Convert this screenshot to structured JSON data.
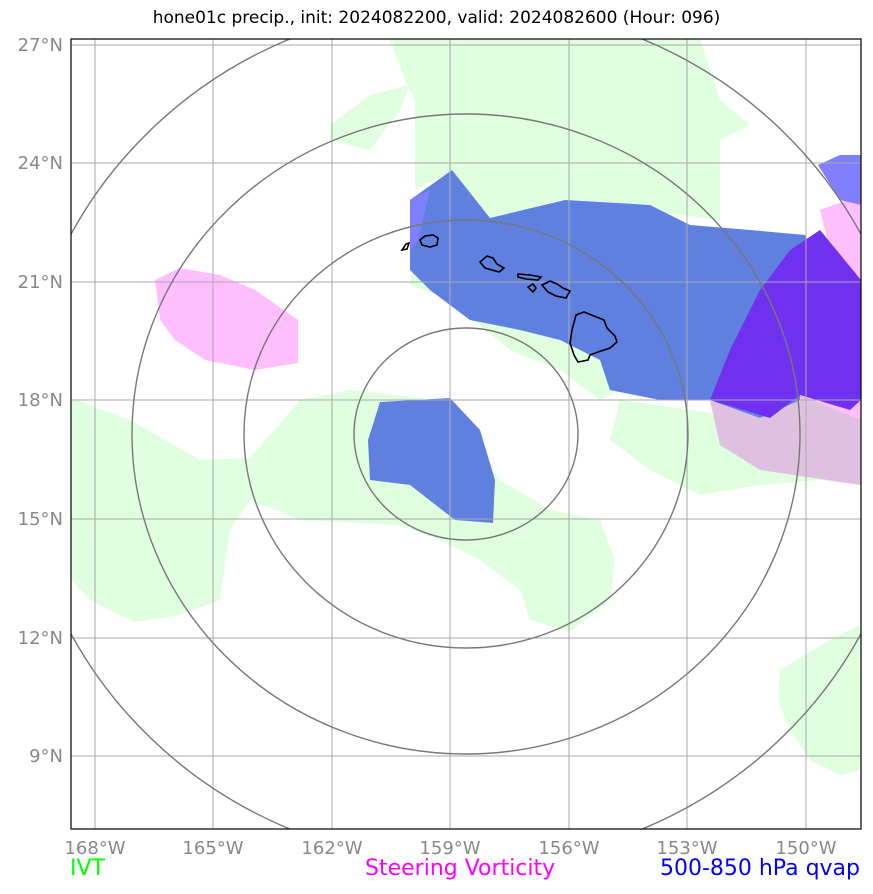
{
  "title": "hone01c precip., init: 2024082200, valid: 2024082600 (Hour: 096)",
  "colors": {
    "ivt": "#00ff00",
    "steering_vorticity": "#ff00ff",
    "qvap": "#0000ff",
    "ivt_fill": "#dfffdf",
    "vort_fill": "#ffbfff",
    "qvap_fill": "#6080e0",
    "qvap_light_fill": "#8080ff",
    "qvap_dark_fill": "#7030f0",
    "vort_mixed_fill": "#e0c0e0",
    "gridline": "#aaaaaa",
    "range_ring": "#777777",
    "coastline": "#000000"
  },
  "axes": {
    "lon_labels": [
      "168°W",
      "165°W",
      "162°W",
      "159°W",
      "156°W",
      "153°W",
      "150°W"
    ],
    "lat_labels": [
      "27°N",
      "24°N",
      "21°N",
      "18°N",
      "15°N",
      "12°N",
      "9°N"
    ]
  },
  "legend": {
    "ivt": "IVT",
    "steering_vorticity": "Steering Vorticity",
    "qvap": "500-850 hPa qvap"
  },
  "features": {
    "range_rings": 4,
    "center": "159°W, 17°N",
    "islands": [
      "Niihau",
      "Kauai",
      "Oahu",
      "Molokai",
      "Maui",
      "Lanai",
      "Kahoolawe",
      "Hawaii"
    ]
  }
}
